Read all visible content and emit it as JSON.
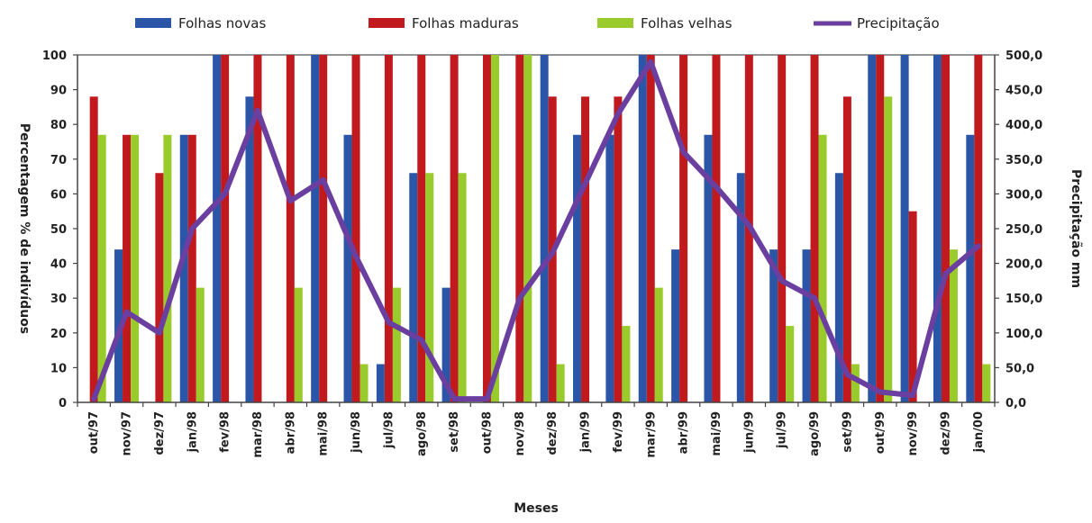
{
  "chart_data": {
    "type": "bar",
    "title": "",
    "xlabel": "Meses",
    "ylabel": "Percentagem % de indivíduos",
    "ylabel_right": "Precipitação mm",
    "ylim": [
      0,
      100
    ],
    "ylim_right": [
      0,
      500
    ],
    "yticks": [
      "0",
      "10",
      "20",
      "30",
      "40",
      "50",
      "60",
      "70",
      "80",
      "90",
      "100"
    ],
    "yticks_right": [
      "0,0",
      "50,0",
      "100,0",
      "150,0",
      "200,0",
      "250,0",
      "300,0",
      "350,0",
      "400,0",
      "450,0",
      "500,0"
    ],
    "legend_position": "top",
    "categories": [
      "out/97",
      "nov/97",
      "dez/97",
      "jan/98",
      "fev/98",
      "mar/98",
      "abr/98",
      "mai/98",
      "jun/98",
      "jul/98",
      "ago/98",
      "set/98",
      "out/98",
      "nov/98",
      "dez/98",
      "jan/99",
      "fev/99",
      "mar/99",
      "abr/99",
      "mai/99",
      "jun/99",
      "jul/99",
      "ago/99",
      "set/99",
      "out/99",
      "nov/99",
      "dez/99",
      "jan/00"
    ],
    "series": [
      {
        "name": "Folhas novas",
        "type": "bar",
        "color": "#2b55a6",
        "axis": "left",
        "values": [
          0,
          44,
          0,
          77,
          100,
          88,
          0,
          100,
          77,
          11,
          66,
          33,
          0,
          0,
          100,
          77,
          77,
          100,
          44,
          77,
          66,
          44,
          44,
          66,
          100,
          100,
          100,
          77
        ]
      },
      {
        "name": "Folhas maduras",
        "type": "bar",
        "color": "#c0191e",
        "axis": "left",
        "values": [
          88,
          77,
          66,
          77,
          100,
          100,
          100,
          100,
          100,
          100,
          100,
          100,
          100,
          100,
          88,
          88,
          88,
          100,
          100,
          100,
          100,
          100,
          100,
          88,
          100,
          55,
          100,
          100
        ]
      },
      {
        "name": "Folhas velhas",
        "type": "bar",
        "color": "#9acb2c",
        "axis": "left",
        "values": [
          77,
          77,
          77,
          33,
          0,
          0,
          33,
          0,
          11,
          33,
          66,
          66,
          100,
          100,
          11,
          0,
          22,
          33,
          0,
          0,
          0,
          22,
          77,
          11,
          88,
          0,
          44,
          11
        ]
      },
      {
        "name": "Precipitação",
        "type": "line",
        "color": "#6a3fa0",
        "axis": "right",
        "values": [
          5,
          130,
          100,
          250,
          300,
          420,
          290,
          320,
          210,
          115,
          90,
          5,
          5,
          150,
          215,
          315,
          415,
          490,
          360,
          310,
          255,
          175,
          150,
          40,
          15,
          10,
          185,
          225
        ]
      }
    ]
  }
}
